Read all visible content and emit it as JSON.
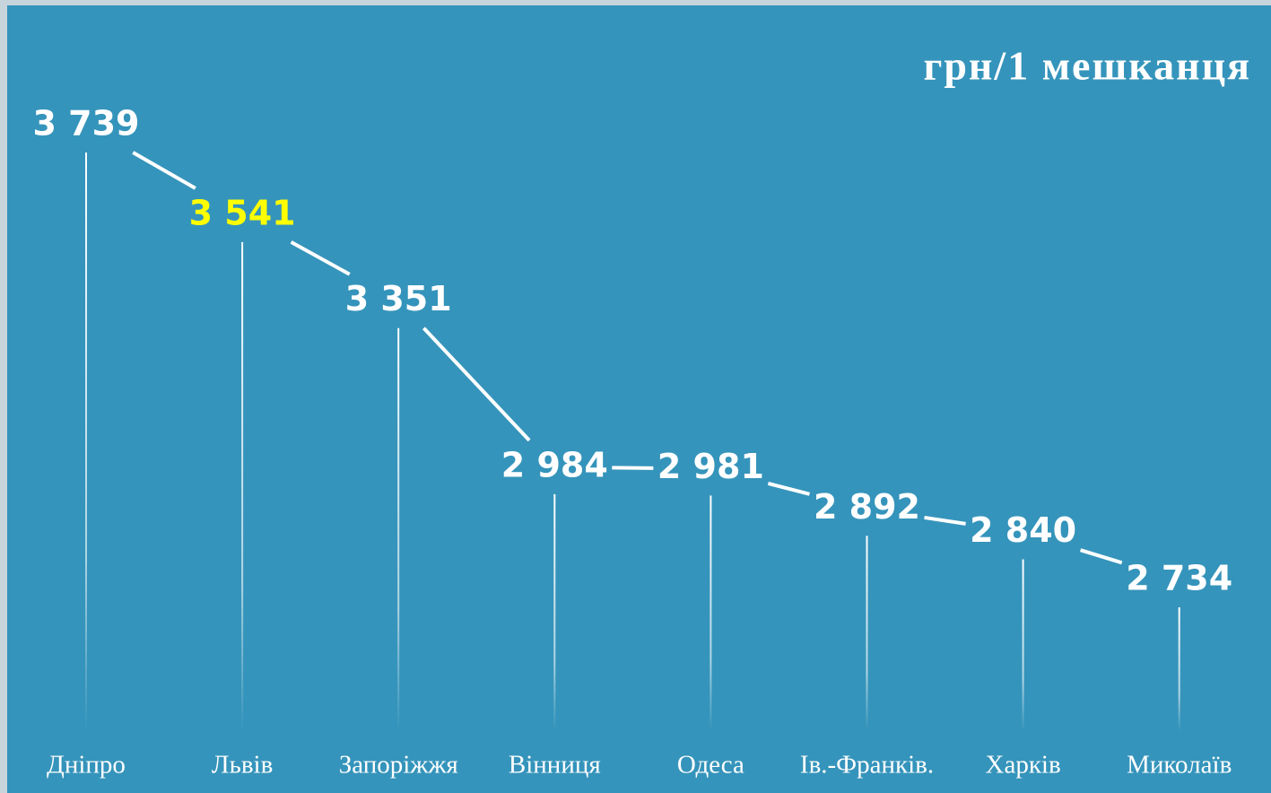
{
  "chart_data": {
    "type": "line",
    "title": "грн/1 мешканця",
    "categories": [
      "Дніпро",
      "Львів",
      "Запоріжжя",
      "Вінниця",
      "Одеса",
      "Ів.-Франків.",
      "Харків",
      "Миколаїв"
    ],
    "values": [
      3739,
      3541,
      3351,
      2984,
      2981,
      2892,
      2840,
      2734
    ],
    "value_labels": [
      "3 739",
      "3 541",
      "3 351",
      "2 984",
      "2 981",
      "2 892",
      "2 840",
      "2 734"
    ],
    "color": "#ffffff",
    "label_colors": [
      "#ffffff",
      "#ffff00",
      "#ffffff",
      "#ffffff",
      "#ffffff",
      "#ffffff",
      "#ffffff",
      "#ffffff"
    ],
    "background": "#3594bb"
  }
}
